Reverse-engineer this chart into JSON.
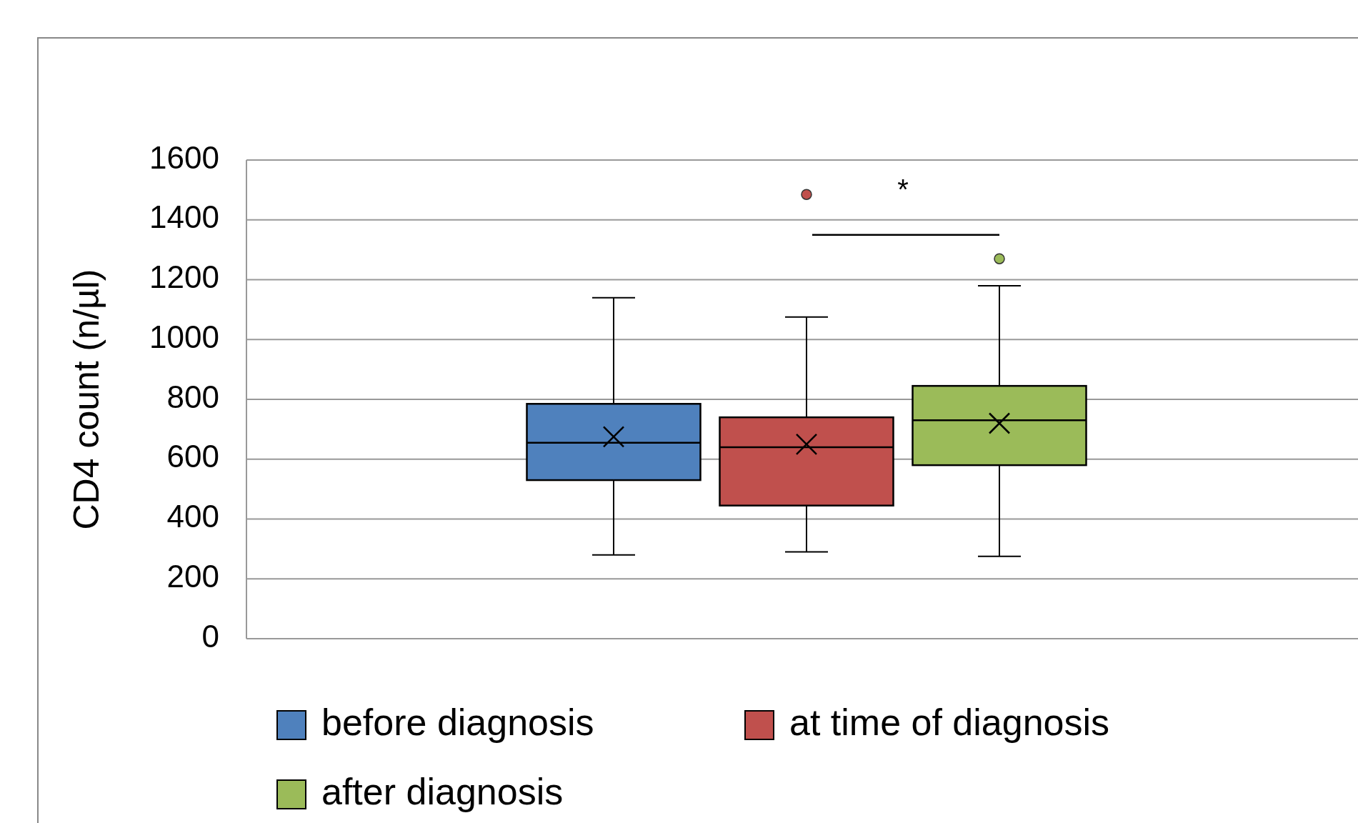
{
  "chart_data": {
    "type": "box",
    "ylabel": "CD4 count (n/µl)",
    "categories": [
      null
    ],
    "ylim": [
      0,
      1600
    ],
    "yticks": [
      0,
      200,
      400,
      600,
      800,
      1000,
      1200,
      1400,
      1600
    ],
    "grid": "y",
    "legend": "bottom",
    "annotations": [
      "*"
    ],
    "series": [
      {
        "name": "before diagnosis",
        "color": "#4f81bd",
        "boxes": [
          {
            "low": 280,
            "q1": 530,
            "median": 655,
            "q3": 785,
            "high": 1140,
            "mean": 675
          }
        ]
      },
      {
        "name": "at time of diagnosis",
        "color": "#c0504d",
        "boxes": [
          {
            "low": 290,
            "q1": 445,
            "median": 640,
            "q3": 740,
            "high": 1075,
            "mean": 650,
            "outliers": [
              1485
            ]
          }
        ]
      },
      {
        "name": "after diagnosis",
        "color": "#9bbb59",
        "boxes": [
          {
            "low": 275,
            "q1": 580,
            "median": 730,
            "q3": 845,
            "high": 1180,
            "mean": 720,
            "outliers": [
              1270
            ]
          }
        ]
      }
    ]
  }
}
